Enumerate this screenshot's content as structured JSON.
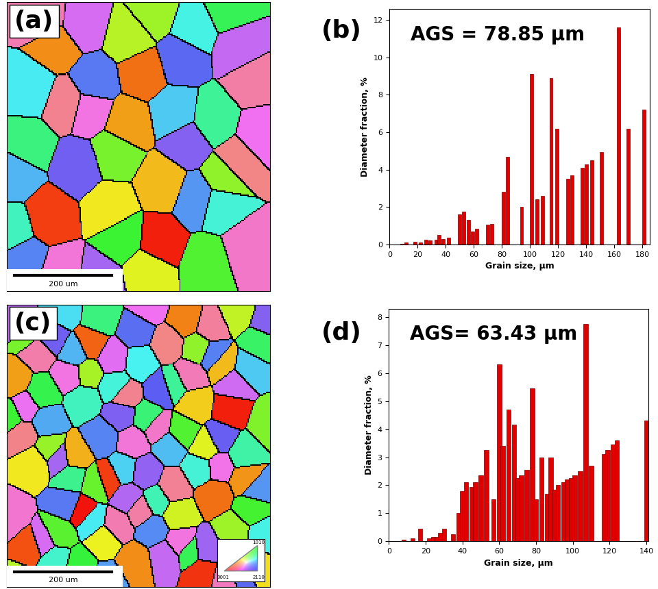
{
  "chart_data": [
    {
      "type": "image",
      "panel_label": "(a)",
      "scale_bar": "200 um"
    },
    {
      "type": "bar",
      "panel_label": "(b)",
      "annotation": "AGS = 78.85 μm",
      "x_label": "Grain size, μm",
      "y_label": "Diameter fraction, %",
      "color": "#e00000",
      "x": [
        9,
        12,
        18,
        22,
        26,
        29,
        33,
        35,
        38,
        42,
        50,
        53,
        56,
        59,
        62,
        70,
        73,
        81,
        84,
        94,
        101,
        105,
        109,
        115,
        119,
        127,
        130,
        137,
        140,
        144,
        151,
        163,
        170,
        181
      ],
      "values": [
        0.05,
        0.1,
        0.15,
        0.1,
        0.25,
        0.2,
        0.25,
        0.5,
        0.3,
        0.35,
        1.6,
        1.75,
        1.3,
        0.7,
        0.85,
        1.05,
        1.1,
        2.8,
        4.7,
        2.0,
        9.1,
        2.4,
        2.6,
        8.9,
        6.2,
        3.5,
        3.7,
        4.1,
        4.3,
        4.5,
        4.95,
        11.6,
        6.2,
        7.2
      ],
      "xlim": [
        0,
        185
      ],
      "ylim": [
        0,
        12.6
      ],
      "xticks": [
        0,
        20,
        40,
        60,
        80,
        100,
        120,
        140,
        160,
        180
      ],
      "yticks": [
        0,
        2,
        4,
        6,
        8,
        10,
        12
      ]
    },
    {
      "type": "image",
      "panel_label": "(c)",
      "scale_bar": "200 um",
      "ipf_labels": [
        "0001",
        "2110",
        "1010"
      ]
    },
    {
      "type": "bar",
      "panel_label": "(d)",
      "annotation": "AGS= 63.43 μm",
      "x_label": "Grain size, μm",
      "y_label": "Diameter fraction, %",
      "color": "#e00000",
      "x": [
        8,
        13,
        17,
        22,
        24,
        26,
        28,
        30,
        35,
        38,
        40,
        42,
        45,
        47,
        50,
        53,
        57,
        60,
        62,
        65,
        68,
        70,
        72,
        75,
        78,
        80,
        83,
        86,
        88,
        90,
        92,
        95,
        97,
        99,
        101,
        104,
        107,
        110,
        117,
        119,
        122,
        124,
        140
      ],
      "values": [
        0.05,
        0.1,
        0.45,
        0.1,
        0.15,
        0.15,
        0.3,
        0.45,
        0.25,
        1.0,
        1.8,
        2.1,
        1.95,
        2.1,
        2.35,
        3.25,
        1.5,
        6.3,
        3.4,
        4.7,
        4.15,
        2.25,
        2.35,
        2.55,
        5.45,
        1.5,
        3.0,
        1.7,
        3.0,
        1.85,
        2.0,
        2.1,
        2.2,
        2.25,
        2.35,
        2.5,
        7.75,
        2.7,
        3.1,
        3.25,
        3.45,
        3.6,
        4.3
      ],
      "xlim": [
        0,
        141
      ],
      "ylim": [
        0,
        8.3
      ],
      "xticks": [
        0,
        20,
        40,
        60,
        80,
        100,
        120,
        140
      ],
      "yticks": [
        0,
        1,
        2,
        3,
        4,
        5,
        6,
        7,
        8
      ]
    }
  ]
}
